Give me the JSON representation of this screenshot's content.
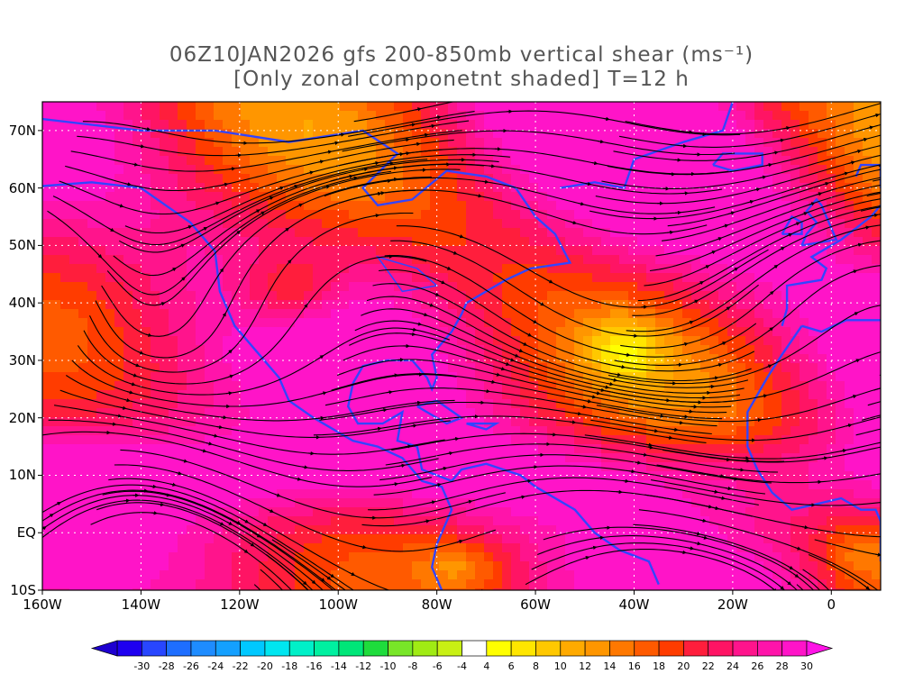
{
  "title": {
    "line1": "06Z10JAN2026 gfs 200-850mb vertical shear (ms⁻¹)",
    "line2": "[Only zonal componetnt shaded] T=12 h"
  },
  "map": {
    "lon_range": [
      -160,
      10
    ],
    "lat_range": [
      -10,
      75
    ],
    "lat_labels": [
      "70N",
      "60N",
      "50N",
      "40N",
      "30N",
      "20N",
      "10N",
      "EQ",
      "10S"
    ],
    "lat_values": [
      70,
      60,
      50,
      40,
      30,
      20,
      10,
      0,
      -10
    ],
    "lon_labels": [
      "160W",
      "140W",
      "120W",
      "100W",
      "80W",
      "60W",
      "40W",
      "20W",
      "0"
    ],
    "lon_values": [
      -160,
      -140,
      -120,
      -100,
      -80,
      -60,
      -40,
      -20,
      0
    ],
    "coastline_color": "#3344ff",
    "streamline_color": "#000000",
    "contour_color": "#a020a0"
  },
  "colorbar": {
    "labels": [
      "-30",
      "-28",
      "-26",
      "-24",
      "-22",
      "-20",
      "-18",
      "-16",
      "-14",
      "-12",
      "-10",
      "-8",
      "-6",
      "-4",
      "4",
      "6",
      "8",
      "10",
      "12",
      "14",
      "16",
      "18",
      "20",
      "22",
      "24",
      "26",
      "28",
      "30"
    ],
    "colors": [
      "#1e00f0",
      "#2846ff",
      "#1e6eff",
      "#1e8cff",
      "#14a0ff",
      "#00c8ff",
      "#00e6f0",
      "#00f0c8",
      "#00f0a0",
      "#00e678",
      "#1edc3c",
      "#78e628",
      "#a0eb14",
      "#c8f014",
      "#ffffff",
      "#ffff00",
      "#ffe600",
      "#ffc800",
      "#ffaa00",
      "#ff9600",
      "#ff7800",
      "#ff5a00",
      "#ff3c00",
      "#ff1e3c",
      "#ff1464",
      "#ff148c",
      "#ff14aa",
      "#ff14c8"
    ]
  }
}
